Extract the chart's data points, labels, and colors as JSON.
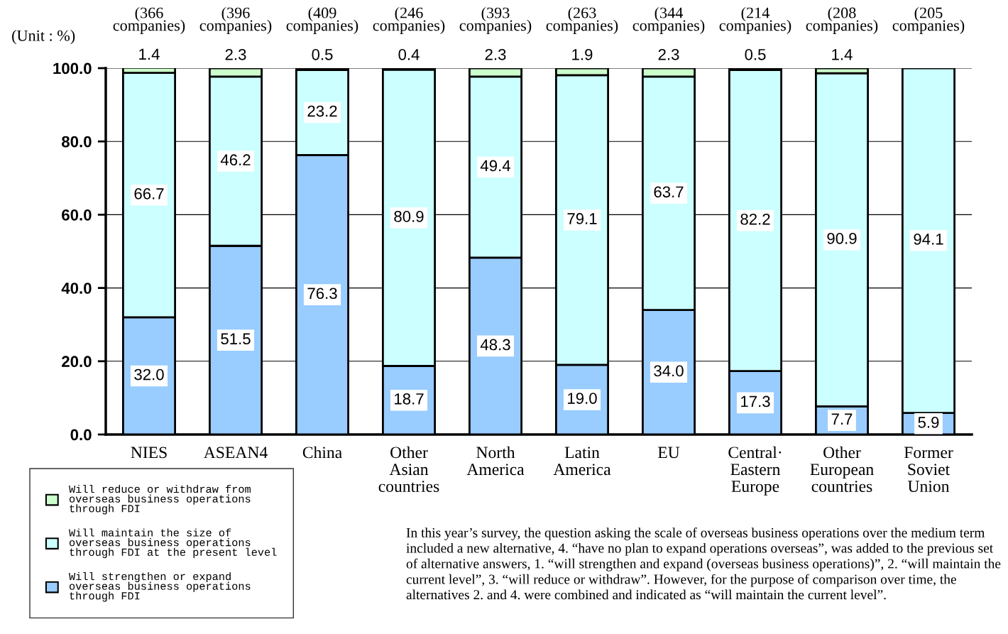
{
  "chart_data": {
    "type": "bar",
    "stacked": true,
    "ylabel": "(Unit : %)",
    "categories": [
      "NIES",
      "ASEAN4",
      "China",
      "Other\nAsian\ncountries",
      "North\nAmerica",
      "Latin\nAmerica",
      "EU",
      "Central·\nEastern\nEurope",
      "Other\nEuropean\ncountries",
      "Former\nSoviet\nUnion"
    ],
    "series": [
      {
        "name": "Will strengthen or expand\noverseas business operations\nthrough FDI",
        "color": "#99ccff",
        "values": [
          32.0,
          51.5,
          76.3,
          18.7,
          48.3,
          19.0,
          34.0,
          17.3,
          7.7,
          5.9
        ],
        "value_labels": [
          "32.0",
          "51.5",
          "76.3",
          "18.7",
          "48.3",
          "19.0",
          "34.0",
          "17.3",
          "7.7",
          "5.9"
        ]
      },
      {
        "name": "Will maintain the size of\noverseas business operations\nthrough FDI at the present level",
        "color": "#ccffff",
        "values": [
          66.7,
          46.2,
          23.2,
          80.9,
          49.4,
          79.1,
          63.7,
          82.2,
          90.9,
          94.1
        ],
        "value_labels": [
          "66.7",
          "46.2",
          "23.2",
          "80.9",
          "49.4",
          "79.1",
          "63.7",
          "82.2",
          "90.9",
          "94.1"
        ]
      },
      {
        "name": "Will reduce or withdraw from\noverseas business operations\nthrough FDI",
        "color": "#ccffcc",
        "values": [
          1.4,
          2.3,
          0.5,
          0.4,
          2.3,
          1.9,
          2.3,
          0.5,
          1.4,
          null
        ],
        "value_labels": [
          "1.4",
          "2.3",
          "0.5",
          "0.4",
          "2.3",
          "1.9",
          "2.3",
          "0.5",
          "1.4",
          null
        ]
      }
    ],
    "ylim": [
      0,
      100
    ],
    "yticks": [
      {
        "value": 0,
        "label": "0.0"
      },
      {
        "value": 20,
        "label": "20.0"
      },
      {
        "value": 40,
        "label": "40.0"
      },
      {
        "value": 60,
        "label": "60.0"
      },
      {
        "value": 80,
        "label": "80.0"
      },
      {
        "value": 100,
        "label": "100.0"
      }
    ],
    "grid": "y",
    "legend": "bottom left",
    "annotations": [
      "(366\ncompanies)",
      "(396\ncompanies)",
      "(409\ncompanies)",
      "(246\ncompanies)",
      "(393\ncompanies)",
      "(263\ncompanies)",
      "(344\ncompanies)",
      "(214\ncompanies)",
      "(208\ncompanies)",
      "(205\ncompanies)",
      "In this year’s survey, the question asking the scale of overseas business operations over the medium term included a new alternative, 4. “have no plan to expand operations overseas”, was added to the previous set of alternative answers, 1. “will strengthen and expand (overseas business operations)”, 2. “will maintain the current level”, 3. “will reduce or withdraw”. However, for the purpose of comparison over time, the alternatives 2. and 4. were combined and indicated as “will maintain the current level”."
    ]
  }
}
